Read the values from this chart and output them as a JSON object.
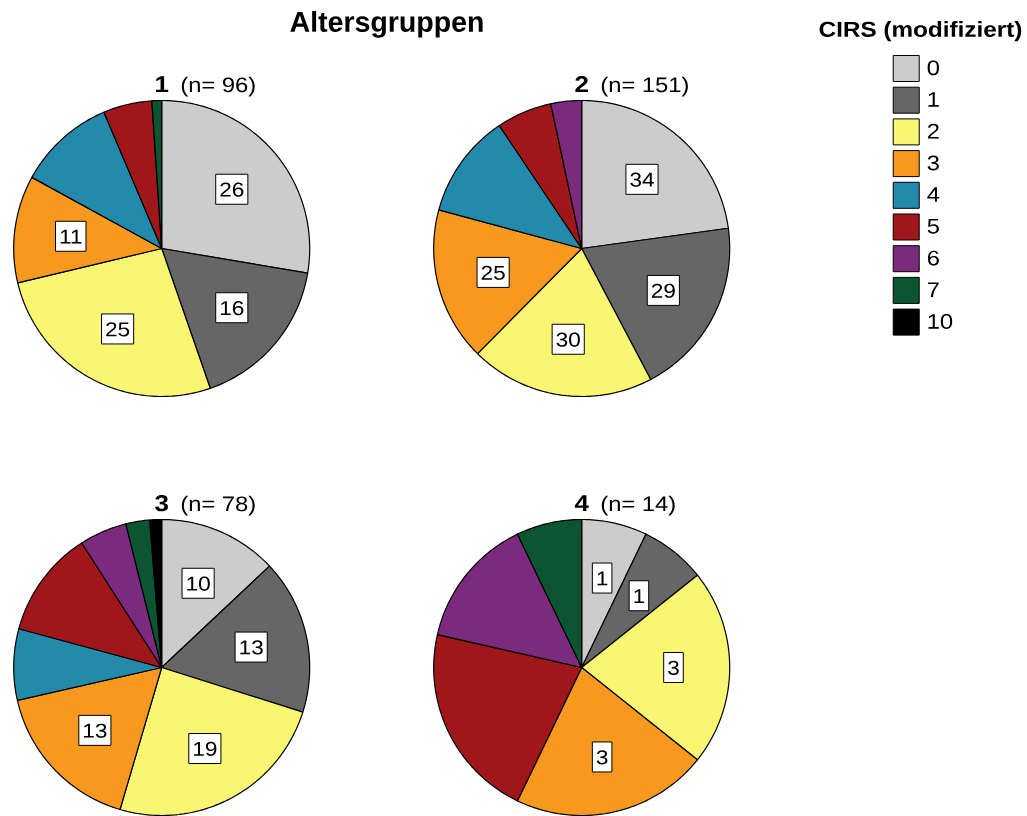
{
  "chart_data": [
    {
      "type": "pie",
      "title": "1",
      "subtitle": "(n= 96)",
      "annotations": [
        "Altersgruppen"
      ],
      "categories": [
        null,
        null,
        null,
        null,
        null,
        null,
        null,
        null,
        null
      ],
      "values": [
        26,
        16,
        25,
        11,
        10,
        5,
        0,
        1,
        0
      ],
      "value_labels": [
        "26",
        "16",
        "25",
        "11",
        null,
        null,
        null,
        null,
        null
      ],
      "colors": [
        "#cccccc",
        "#666666",
        "#f9f772",
        "#f7991e",
        "#238aac",
        "#a0161a",
        "#7b2a7d",
        "#0b5530",
        "#000000"
      ]
    },
    {
      "type": "pie",
      "title": "2",
      "subtitle": "(n= 151)",
      "legend": "right",
      "legend_title": "CIRS (modifiziert)",
      "categories": [
        "0",
        "1",
        "2",
        "3",
        "4",
        "5",
        "6",
        "7",
        "10"
      ],
      "values": [
        34,
        29,
        30,
        25,
        17,
        9,
        5,
        0,
        0
      ],
      "value_labels": [
        "34",
        "29",
        "30",
        "25",
        null,
        null,
        null,
        null,
        null
      ],
      "colors": [
        "#cccccc",
        "#666666",
        "#f9f772",
        "#f7991e",
        "#238aac",
        "#a0161a",
        "#7b2a7d",
        "#0b5530",
        "#000000"
      ]
    },
    {
      "type": "pie",
      "title": "3",
      "subtitle": "(n= 78)",
      "categories": [
        null,
        null,
        null,
        null,
        null,
        null,
        null,
        null,
        null
      ],
      "values": [
        10,
        13,
        19,
        13,
        6,
        9,
        4,
        2,
        1
      ],
      "value_labels": [
        "10",
        "13",
        "19",
        "13",
        null,
        null,
        null,
        null,
        null
      ],
      "colors": [
        "#cccccc",
        "#666666",
        "#f9f772",
        "#f7991e",
        "#238aac",
        "#a0161a",
        "#7b2a7d",
        "#0b5530",
        "#000000"
      ]
    },
    {
      "type": "pie",
      "title": "4",
      "subtitle": "(n= 14)",
      "categories": [
        null,
        null,
        null,
        null,
        null,
        null,
        null,
        null,
        null
      ],
      "values": [
        1,
        1,
        3,
        3,
        0,
        3,
        2,
        1,
        0
      ],
      "value_labels": [
        "1",
        "1",
        "3",
        "3",
        null,
        null,
        null,
        null,
        null
      ],
      "colors": [
        "#cccccc",
        "#666666",
        "#f9f772",
        "#f7991e",
        "#238aac",
        "#a0161a",
        "#7b2a7d",
        "#0b5530",
        "#000000"
      ]
    }
  ]
}
